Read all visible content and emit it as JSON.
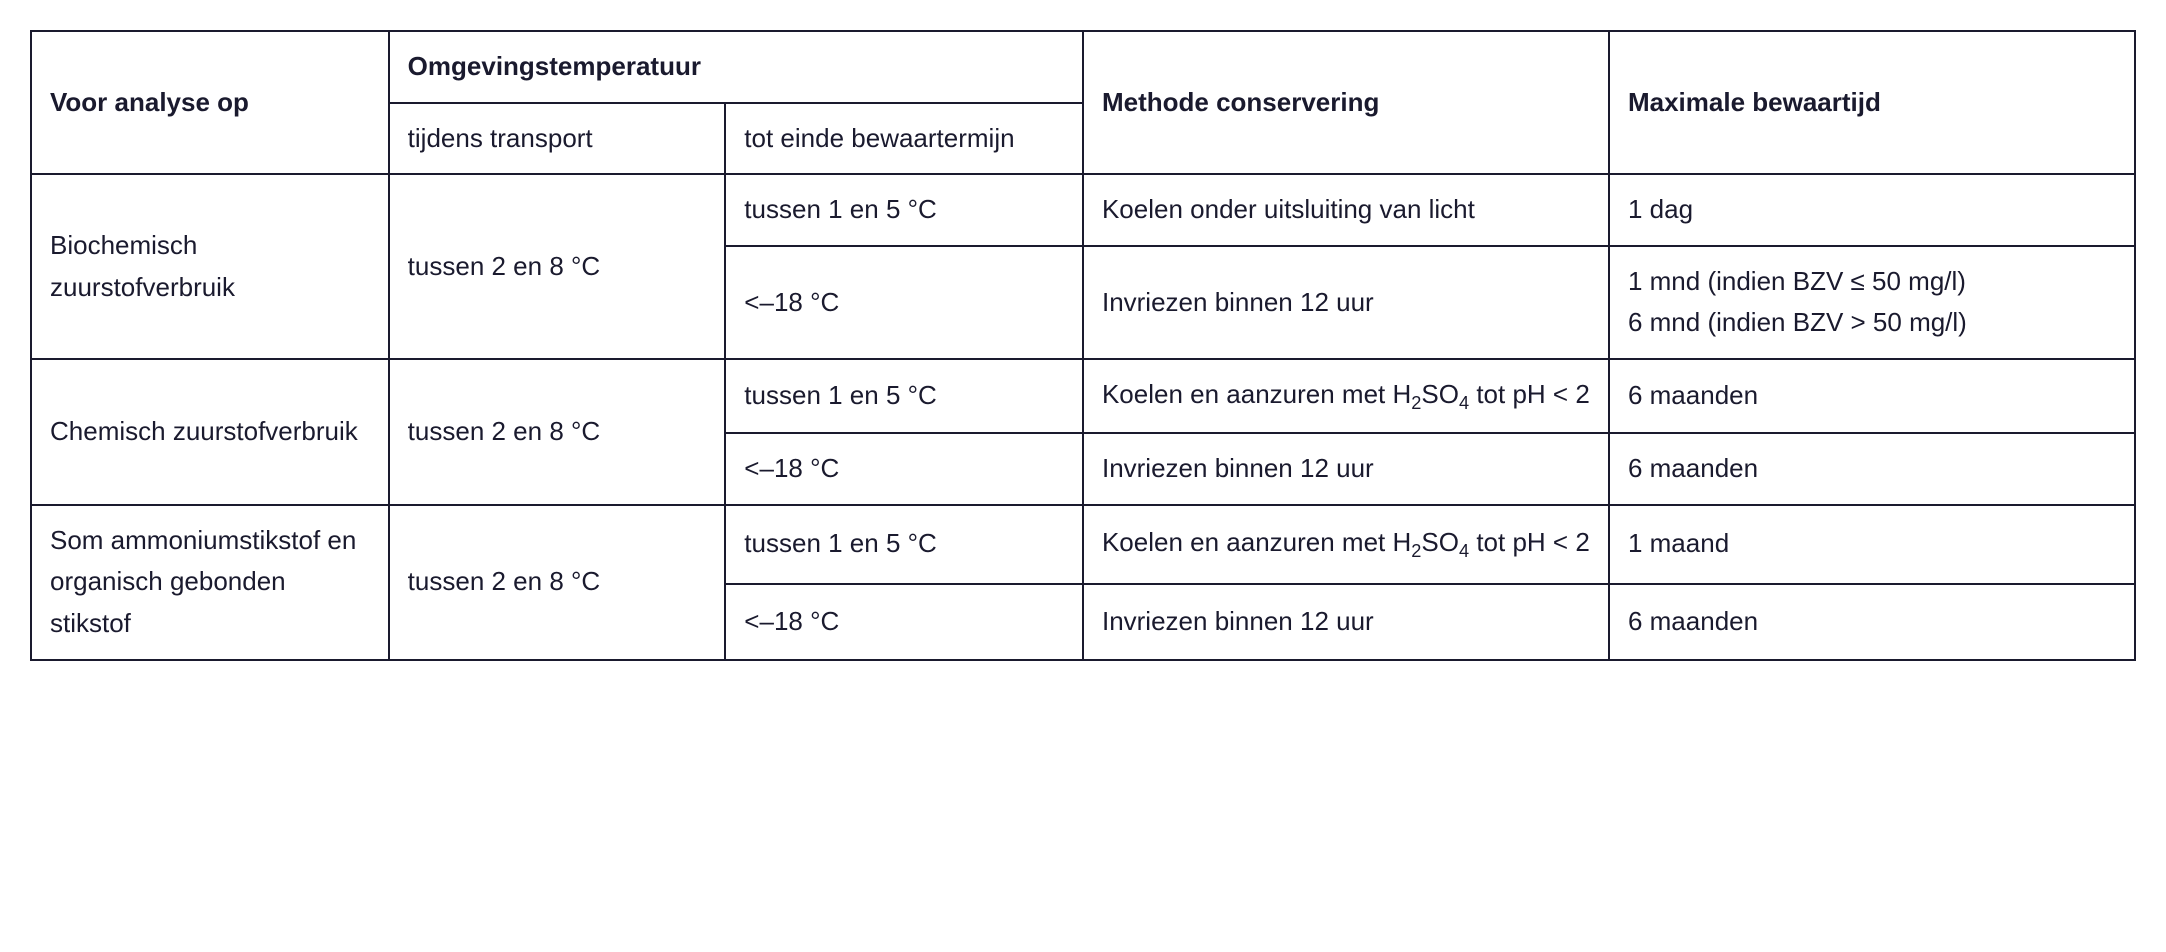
{
  "table": {
    "headers": {
      "analysis": "Voor analyse op",
      "ambient_temp": "Omgevingstemperatuur",
      "transport": "tijdens transport",
      "storage_end": "tot einde bewaartermijn",
      "method": "Methode conservering",
      "max_time": "Maximale bewaartijd"
    },
    "rows": [
      {
        "analysis": "Biochemisch zuurstofverbruik",
        "transport": "tussen 2 en 8 °C",
        "sub": [
          {
            "storage": "tussen 1 en 5 °C",
            "method": "Koelen onder uitsluiting van licht",
            "max": "1 dag"
          },
          {
            "storage": "<–18 °C",
            "method": "Invriezen binnen 12 uur",
            "max": "1 mnd (indien BZV ≤ 50 mg/l)\n6 mnd (indien BZV > 50 mg/l)"
          }
        ]
      },
      {
        "analysis": "Chemisch zuurstofverbruik",
        "transport": "tussen 2 en 8 °C",
        "sub": [
          {
            "storage": "tussen 1 en 5 °C",
            "method_html": "Koelen en aanzuren met H<sub>2</sub>SO<sub>4</sub> tot pH < 2",
            "max": "6 maanden"
          },
          {
            "storage": "<–18 °C",
            "method": "Invriezen binnen 12 uur",
            "max": "6 maanden"
          }
        ]
      },
      {
        "analysis": "Som ammoniumstikstof en organisch gebonden stikstof",
        "transport": "tussen 2 en 8 °C",
        "sub": [
          {
            "storage": "tussen 1 en 5 °C",
            "method_html": "Koelen en aanzuren met H<sub>2</sub>SO<sub>4</sub> tot pH < 2",
            "max": "1 maand"
          },
          {
            "storage": "<–18 °C",
            "method": "Invriezen binnen 12 uur",
            "max": "6 maanden"
          }
        ]
      }
    ]
  }
}
